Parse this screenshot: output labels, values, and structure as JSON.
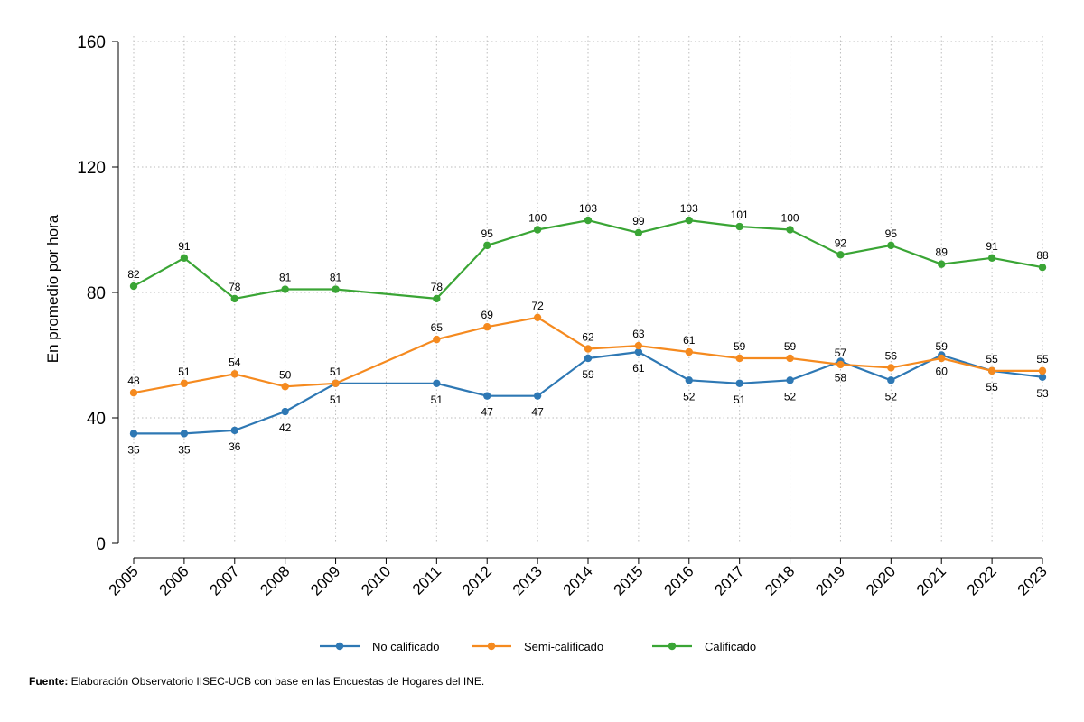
{
  "chart_data": {
    "type": "line",
    "title": "",
    "xlabel": "",
    "ylabel": "En promedio por hora",
    "ylim": [
      0,
      160
    ],
    "yticks": [
      0,
      40,
      80,
      120,
      160
    ],
    "grid": true,
    "legend": "bottom",
    "categories": [
      "2005",
      "2006",
      "2007",
      "2008",
      "2009",
      "2010",
      "2011",
      "2012",
      "2013",
      "2014",
      "2015",
      "2016",
      "2017",
      "2018",
      "2019",
      "2020",
      "2021",
      "2022",
      "2023"
    ],
    "series": [
      {
        "name": "No calificado",
        "color": "#2e78b4",
        "label_pos": "below",
        "values": [
          35,
          35,
          36,
          42,
          51,
          null,
          51,
          47,
          47,
          59,
          61,
          52,
          51,
          52,
          58,
          52,
          60,
          55,
          53
        ]
      },
      {
        "name": "Semi-calificado",
        "color": "#f58a1f",
        "label_pos": "above",
        "values": [
          48,
          51,
          54,
          50,
          51,
          null,
          65,
          69,
          72,
          62,
          63,
          61,
          59,
          59,
          57,
          56,
          59,
          55,
          55
        ]
      },
      {
        "name": "Calificado",
        "color": "#3aa535",
        "label_pos": "above",
        "values": [
          82,
          91,
          78,
          81,
          81,
          null,
          78,
          95,
          100,
          103,
          99,
          103,
          101,
          100,
          92,
          95,
          89,
          91,
          88
        ]
      }
    ]
  },
  "source": {
    "label": "Fuente:",
    "text": " Elaboración Observatorio IISEC-UCB con base en las Encuestas de Hogares del INE."
  }
}
